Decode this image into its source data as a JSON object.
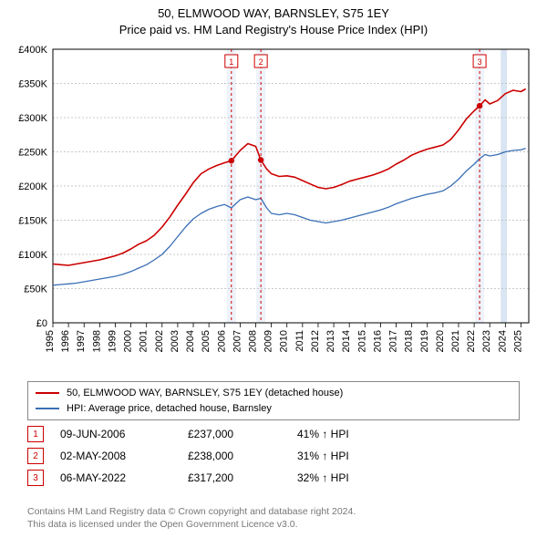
{
  "title": {
    "line1": "50, ELMWOOD WAY, BARNSLEY, S75 1EY",
    "line2": "Price paid vs. HM Land Registry's House Price Index (HPI)"
  },
  "chart": {
    "type": "line",
    "background_color": "#ffffff",
    "plot_bg": "#ffffff",
    "grid_color": "#b9b9b9",
    "grid_dash": "2,2",
    "axis_color": "#000000",
    "xlim": [
      1995,
      2025.5
    ],
    "ylim": [
      0,
      400000
    ],
    "ytick_step": 50000,
    "yticks": [
      "£0",
      "£50K",
      "£100K",
      "£150K",
      "£200K",
      "£250K",
      "£300K",
      "£350K",
      "£400K"
    ],
    "xticks": [
      1995,
      1996,
      1997,
      1998,
      1999,
      2000,
      2001,
      2002,
      2003,
      2004,
      2005,
      2006,
      2007,
      2008,
      2009,
      2010,
      2011,
      2012,
      2013,
      2014,
      2015,
      2016,
      2017,
      2018,
      2019,
      2020,
      2021,
      2022,
      2023,
      2024,
      2025
    ],
    "series": [
      {
        "id": "price_paid",
        "label": "50, ELMWOOD WAY, BARNSLEY, S75 1EY (detached house)",
        "color": "#cc0000",
        "width": 1.6,
        "data": [
          [
            1995.0,
            86000
          ],
          [
            1995.5,
            85000
          ],
          [
            1996.0,
            84000
          ],
          [
            1996.5,
            86000
          ],
          [
            1997.0,
            88000
          ],
          [
            1997.5,
            90000
          ],
          [
            1998.0,
            92000
          ],
          [
            1998.5,
            95000
          ],
          [
            1999.0,
            98000
          ],
          [
            1999.5,
            102000
          ],
          [
            2000.0,
            108000
          ],
          [
            2000.5,
            115000
          ],
          [
            2001.0,
            120000
          ],
          [
            2001.5,
            128000
          ],
          [
            2002.0,
            140000
          ],
          [
            2002.5,
            155000
          ],
          [
            2003.0,
            172000
          ],
          [
            2003.5,
            188000
          ],
          [
            2004.0,
            205000
          ],
          [
            2004.5,
            218000
          ],
          [
            2005.0,
            225000
          ],
          [
            2005.5,
            230000
          ],
          [
            2006.0,
            234000
          ],
          [
            2006.44,
            237000
          ],
          [
            2007.0,
            252000
          ],
          [
            2007.5,
            262000
          ],
          [
            2008.0,
            258000
          ],
          [
            2008.33,
            238000
          ],
          [
            2008.7,
            225000
          ],
          [
            2009.0,
            218000
          ],
          [
            2009.5,
            214000
          ],
          [
            2010.0,
            215000
          ],
          [
            2010.5,
            213000
          ],
          [
            2011.0,
            208000
          ],
          [
            2011.5,
            203000
          ],
          [
            2012.0,
            198000
          ],
          [
            2012.5,
            196000
          ],
          [
            2013.0,
            198000
          ],
          [
            2013.5,
            202000
          ],
          [
            2014.0,
            207000
          ],
          [
            2014.5,
            210000
          ],
          [
            2015.0,
            213000
          ],
          [
            2015.5,
            216000
          ],
          [
            2016.0,
            220000
          ],
          [
            2016.5,
            225000
          ],
          [
            2017.0,
            232000
          ],
          [
            2017.5,
            238000
          ],
          [
            2018.0,
            245000
          ],
          [
            2018.5,
            250000
          ],
          [
            2019.0,
            254000
          ],
          [
            2019.5,
            257000
          ],
          [
            2020.0,
            260000
          ],
          [
            2020.5,
            268000
          ],
          [
            2021.0,
            282000
          ],
          [
            2021.5,
            298000
          ],
          [
            2022.0,
            310000
          ],
          [
            2022.35,
            317200
          ],
          [
            2022.7,
            326000
          ],
          [
            2023.0,
            320000
          ],
          [
            2023.5,
            325000
          ],
          [
            2024.0,
            335000
          ],
          [
            2024.5,
            340000
          ],
          [
            2025.0,
            338000
          ],
          [
            2025.3,
            342000
          ]
        ]
      },
      {
        "id": "hpi",
        "label": "HPI: Average price, detached house, Barnsley",
        "color": "#3b6fb6",
        "width": 1.3,
        "data": [
          [
            1995.0,
            55000
          ],
          [
            1995.5,
            56000
          ],
          [
            1996.0,
            57000
          ],
          [
            1996.5,
            58000
          ],
          [
            1997.0,
            60000
          ],
          [
            1997.5,
            62000
          ],
          [
            1998.0,
            64000
          ],
          [
            1998.5,
            66000
          ],
          [
            1999.0,
            68000
          ],
          [
            1999.5,
            71000
          ],
          [
            2000.0,
            75000
          ],
          [
            2000.5,
            80000
          ],
          [
            2001.0,
            85000
          ],
          [
            2001.5,
            92000
          ],
          [
            2002.0,
            100000
          ],
          [
            2002.5,
            112000
          ],
          [
            2003.0,
            126000
          ],
          [
            2003.5,
            140000
          ],
          [
            2004.0,
            152000
          ],
          [
            2004.5,
            160000
          ],
          [
            2005.0,
            166000
          ],
          [
            2005.5,
            170000
          ],
          [
            2006.0,
            173000
          ],
          [
            2006.44,
            168000
          ],
          [
            2007.0,
            180000
          ],
          [
            2007.5,
            184000
          ],
          [
            2008.0,
            180000
          ],
          [
            2008.33,
            182000
          ],
          [
            2008.7,
            168000
          ],
          [
            2009.0,
            160000
          ],
          [
            2009.5,
            158000
          ],
          [
            2010.0,
            160000
          ],
          [
            2010.5,
            158000
          ],
          [
            2011.0,
            154000
          ],
          [
            2011.5,
            150000
          ],
          [
            2012.0,
            148000
          ],
          [
            2012.5,
            146000
          ],
          [
            2013.0,
            148000
          ],
          [
            2013.5,
            150000
          ],
          [
            2014.0,
            153000
          ],
          [
            2014.5,
            156000
          ],
          [
            2015.0,
            159000
          ],
          [
            2015.5,
            162000
          ],
          [
            2016.0,
            165000
          ],
          [
            2016.5,
            169000
          ],
          [
            2017.0,
            174000
          ],
          [
            2017.5,
            178000
          ],
          [
            2018.0,
            182000
          ],
          [
            2018.5,
            185000
          ],
          [
            2019.0,
            188000
          ],
          [
            2019.5,
            190000
          ],
          [
            2020.0,
            193000
          ],
          [
            2020.5,
            200000
          ],
          [
            2021.0,
            210000
          ],
          [
            2021.5,
            222000
          ],
          [
            2022.0,
            232000
          ],
          [
            2022.35,
            240000
          ],
          [
            2022.7,
            246000
          ],
          [
            2023.0,
            244000
          ],
          [
            2023.5,
            246000
          ],
          [
            2024.0,
            250000
          ],
          [
            2024.5,
            252000
          ],
          [
            2025.0,
            253000
          ],
          [
            2025.3,
            255000
          ]
        ]
      }
    ],
    "sale_markers": [
      {
        "n": "1",
        "x": 2006.44,
        "y": 237000
      },
      {
        "n": "2",
        "x": 2008.33,
        "y": 238000
      },
      {
        "n": "3",
        "x": 2022.35,
        "y": 317200
      }
    ],
    "marker_line_color": "#cc0000",
    "marker_line_dash": "3,3",
    "marker_box_border": "#cc0000",
    "marker_box_fill": "#ffffff",
    "marker_dot_color": "#cc0000",
    "highlight_band": {
      "from": 2023.7,
      "to": 2024.1,
      "fill": "#d9e5f2"
    },
    "pre_marker_bands_fill": "#eef3fa"
  },
  "legend": {
    "items": [
      {
        "color": "#cc0000",
        "label": "50, ELMWOOD WAY, BARNSLEY, S75 1EY (detached house)"
      },
      {
        "color": "#3b6fb6",
        "label": "HPI: Average price, detached house, Barnsley"
      }
    ]
  },
  "sales": [
    {
      "n": "1",
      "date": "09-JUN-2006",
      "price": "£237,000",
      "delta": "41% ↑ HPI"
    },
    {
      "n": "2",
      "date": "02-MAY-2008",
      "price": "£238,000",
      "delta": "31% ↑ HPI"
    },
    {
      "n": "3",
      "date": "06-MAY-2022",
      "price": "£317,200",
      "delta": "32% ↑ HPI"
    }
  ],
  "sales_badge_border": "#cc0000",
  "sales_badge_text": "#cc0000",
  "footnote": {
    "line1": "Contains HM Land Registry data © Crown copyright and database right 2024.",
    "line2": "This data is licensed under the Open Government Licence v3.0."
  }
}
